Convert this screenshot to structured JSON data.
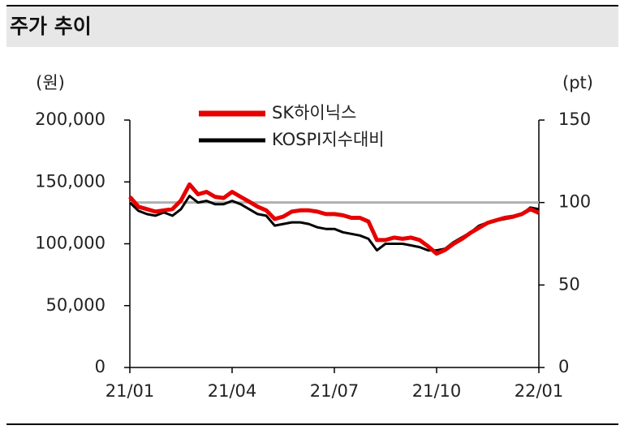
{
  "chart_data": {
    "type": "line",
    "title": "주가 추이",
    "ylabel": "(원)",
    "y2label": "(pt)",
    "xlim": [
      0,
      12
    ],
    "xticks": [
      {
        "value": 0,
        "label": "21/01"
      },
      {
        "value": 3,
        "label": "21/04"
      },
      {
        "value": 6,
        "label": "21/07"
      },
      {
        "value": 9,
        "label": "21/10"
      },
      {
        "value": 12,
        "label": "22/01"
      }
    ],
    "ylim": [
      0,
      200000
    ],
    "yticks": [
      0,
      {
        "value": 50000,
        "label": "50,000"
      },
      {
        "value": 100000,
        "label": "100,000"
      },
      {
        "value": 150000,
        "label": "150,000"
      },
      {
        "value": 200000,
        "label": "200,000"
      }
    ],
    "y2lim": [
      0,
      150
    ],
    "y2ticks": [
      0,
      50,
      100,
      150
    ],
    "reference_line": {
      "axis": "y2",
      "value": 100,
      "color": "#b0b0b0"
    },
    "legend": "upper left",
    "x": [
      0,
      0.25,
      0.5,
      0.75,
      1,
      1.25,
      1.5,
      1.75,
      2,
      2.25,
      2.5,
      2.75,
      3,
      3.25,
      3.5,
      3.75,
      4,
      4.25,
      4.5,
      4.75,
      5,
      5.25,
      5.5,
      5.75,
      6,
      6.25,
      6.5,
      6.75,
      7,
      7.25,
      7.5,
      7.75,
      8,
      8.25,
      8.5,
      8.75,
      9,
      9.25,
      9.5,
      9.75,
      10,
      10.25,
      10.5,
      10.75,
      11,
      11.25,
      11.5,
      11.75,
      12
    ],
    "series": [
      {
        "name": "SK하이닉스",
        "color": "#e60000",
        "width": 5,
        "values": [
          138000,
          130000,
          128000,
          126000,
          127000,
          128000,
          135000,
          148000,
          140000,
          142000,
          138000,
          137000,
          142000,
          138000,
          134000,
          130000,
          127000,
          120000,
          122000,
          126000,
          127000,
          127000,
          126000,
          124000,
          124000,
          123000,
          121000,
          121000,
          118000,
          103000,
          103000,
          105000,
          104000,
          105000,
          103000,
          98000,
          92000,
          95000,
          100000,
          104000,
          109000,
          113000,
          117000,
          119000,
          121000,
          122000,
          124000,
          128000,
          125000
        ]
      },
      {
        "name": "KOSPI지수대비",
        "color": "#000000",
        "width": 3,
        "axis": "y2",
        "values": [
          100,
          95,
          93,
          92,
          94,
          92,
          96,
          104,
          100,
          101,
          99,
          99,
          101,
          99,
          96,
          93,
          92,
          86,
          87,
          88,
          88,
          87,
          85,
          84,
          84,
          82,
          81,
          80,
          78,
          71,
          75,
          75,
          75,
          74,
          73,
          71,
          71,
          72,
          76,
          79,
          82,
          86,
          88,
          89,
          90,
          91,
          93,
          97,
          96
        ]
      }
    ]
  }
}
